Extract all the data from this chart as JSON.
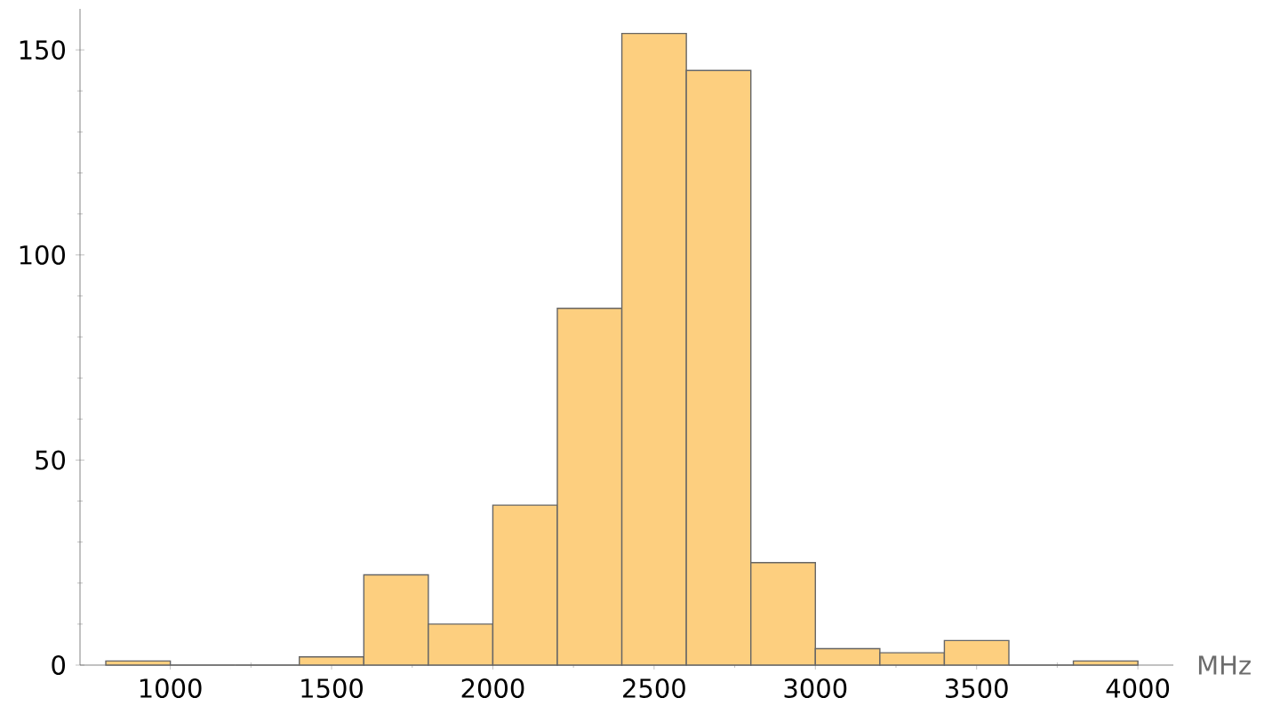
{
  "chart_data": {
    "type": "histogram",
    "xlabel": "MHz",
    "bins": [
      800,
      1000,
      1200,
      1400,
      1600,
      1800,
      2000,
      2200,
      2400,
      2600,
      2800,
      3000,
      3200,
      3400,
      3600,
      3800,
      4000
    ],
    "values": [
      1,
      0,
      0,
      2,
      22,
      10,
      39,
      87,
      154,
      145,
      25,
      4,
      3,
      6,
      0,
      1
    ],
    "color": "#fdcf7f",
    "xlim": [
      720,
      4110
    ],
    "ylim": [
      0,
      160
    ],
    "xticks": [
      1000,
      1500,
      2000,
      2500,
      3000,
      3500,
      4000
    ],
    "yticks": [
      0,
      50,
      100,
      150
    ],
    "grid": false
  }
}
